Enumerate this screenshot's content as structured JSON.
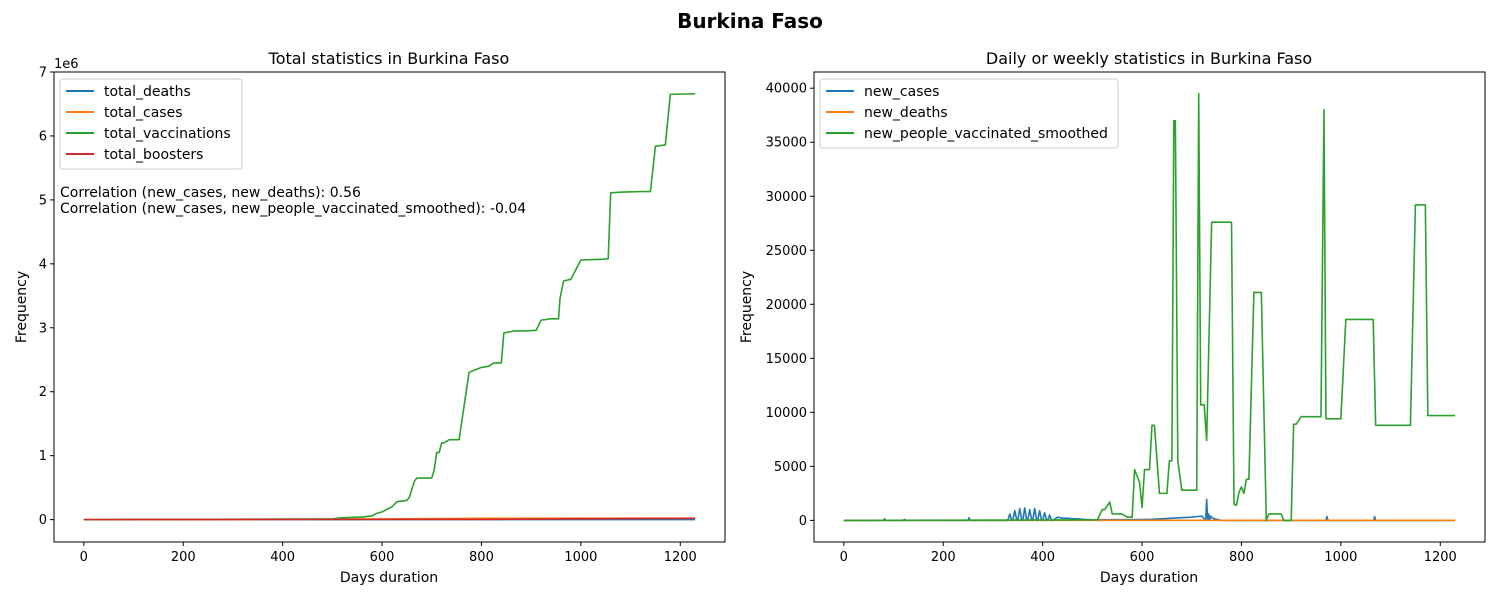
{
  "figure": {
    "suptitle": "Burkina Faso"
  },
  "chart_data": [
    {
      "type": "line",
      "title": "Total statistics in Burkina Faso",
      "xlabel": "Days duration",
      "ylabel": "Frequency",
      "y_offset_label": "1e6",
      "xlim": [
        -60,
        1290
      ],
      "ylim": [
        -350000,
        7000000
      ],
      "xticks": [
        0,
        200,
        400,
        600,
        800,
        1000,
        1200
      ],
      "yticks": [
        0,
        1000000,
        2000000,
        3000000,
        4000000,
        5000000,
        6000000,
        7000000
      ],
      "ytick_labels": [
        "0",
        "1",
        "2",
        "3",
        "4",
        "5",
        "6",
        "7"
      ],
      "legend_position": "upper-left",
      "annotations": [
        "Correlation (new_cases, new_deaths): 0.56",
        "Correlation (new_cases, new_people_vaccinated_smoothed): -0.04"
      ],
      "series": [
        {
          "name": "total_deaths",
          "color": "#1f77b4",
          "x": [
            0,
            1230
          ],
          "y": [
            0,
            400
          ]
        },
        {
          "name": "total_cases",
          "color": "#ff7f0e",
          "x": [
            0,
            300,
            400,
            600,
            800,
            1000,
            1230
          ],
          "y": [
            0,
            1000,
            4000,
            10000,
            20000,
            22000,
            22000
          ]
        },
        {
          "name": "total_vaccinations",
          "color": "#2ca02c",
          "x": [
            0,
            500,
            520,
            560,
            580,
            590,
            600,
            620,
            630,
            650,
            655,
            665,
            670,
            680,
            700,
            705,
            710,
            715,
            720,
            725,
            735,
            740,
            755,
            775,
            780,
            790,
            800,
            815,
            825,
            840,
            845,
            860,
            865,
            880,
            890,
            910,
            920,
            940,
            955,
            958,
            965,
            980,
            1000,
            1040,
            1055,
            1060,
            1080,
            1120,
            1140,
            1150,
            1160,
            1170,
            1180,
            1230
          ],
          "y": [
            0,
            10000,
            30000,
            40000,
            60000,
            100000,
            120000,
            200000,
            280000,
            300000,
            350000,
            600000,
            650000,
            650000,
            650000,
            780000,
            1050000,
            1050000,
            1200000,
            1200000,
            1250000,
            1250000,
            1250000,
            2300000,
            2320000,
            2350000,
            2380000,
            2400000,
            2450000,
            2450000,
            2920000,
            2940000,
            2950000,
            2950000,
            2950000,
            2960000,
            3120000,
            3140000,
            3140000,
            3450000,
            3730000,
            3760000,
            4060000,
            4070000,
            4080000,
            5110000,
            5120000,
            5130000,
            5130000,
            5840000,
            5850000,
            5860000,
            6650000,
            6660000
          ]
        },
        {
          "name": "total_boosters",
          "color": "#d62728",
          "x": [
            0,
            800,
            1230
          ],
          "y": [
            0,
            5000,
            20000
          ]
        }
      ]
    },
    {
      "type": "line",
      "title": "Daily or weekly statistics in Burkina Faso",
      "xlabel": "Days duration",
      "ylabel": "Frequency",
      "xlim": [
        -60,
        1290
      ],
      "ylim": [
        -2000,
        41500
      ],
      "xticks": [
        0,
        200,
        400,
        600,
        800,
        1000,
        1200
      ],
      "yticks": [
        0,
        5000,
        10000,
        15000,
        20000,
        25000,
        30000,
        35000,
        40000
      ],
      "legend_position": "upper-left",
      "series": [
        {
          "name": "new_cases",
          "color": "#1f77b4",
          "x": [
            0,
            80,
            82,
            84,
            120,
            122,
            124,
            250,
            252,
            254,
            330,
            334,
            338,
            340,
            344,
            348,
            350,
            354,
            358,
            360,
            364,
            368,
            370,
            374,
            378,
            380,
            384,
            388,
            390,
            394,
            398,
            400,
            404,
            408,
            410,
            414,
            418,
            420,
            430,
            440,
            450,
            460,
            470,
            480,
            500,
            600,
            620,
            640,
            660,
            680,
            700,
            710,
            720,
            728,
            730,
            732,
            734,
            736,
            738,
            742,
            750,
            760,
            970,
            972,
            974,
            1066,
            1068,
            1070,
            1230
          ],
          "y": [
            0,
            0,
            150,
            0,
            0,
            100,
            0,
            0,
            250,
            0,
            0,
            600,
            0,
            0,
            900,
            0,
            0,
            1100,
            0,
            0,
            1150,
            0,
            0,
            1000,
            0,
            0,
            1100,
            0,
            0,
            900,
            0,
            0,
            700,
            0,
            0,
            500,
            0,
            0,
            300,
            200,
            200,
            150,
            150,
            100,
            50,
            80,
            100,
            150,
            200,
            250,
            300,
            350,
            400,
            0,
            1950,
            0,
            600,
            0,
            400,
            200,
            100,
            0,
            0,
            350,
            0,
            0,
            350,
            0,
            0
          ]
        },
        {
          "name": "new_deaths",
          "color": "#ff7f0e",
          "x": [
            0,
            1230
          ],
          "y": [
            0,
            10
          ]
        },
        {
          "name": "new_people_vaccinated_smoothed",
          "color": "#2ca02c",
          "x": [
            0,
            510,
            520,
            525,
            535,
            540,
            560,
            570,
            580,
            585,
            595,
            600,
            605,
            615,
            620,
            625,
            635,
            650,
            655,
            660,
            664,
            667,
            672,
            680,
            700,
            710,
            714,
            718,
            725,
            730,
            740,
            750,
            760,
            780,
            785,
            790,
            795,
            800,
            805,
            810,
            815,
            825,
            830,
            840,
            850,
            855,
            860,
            865,
            880,
            885,
            900,
            905,
            910,
            920,
            930,
            940,
            960,
            966,
            970,
            980,
            1000,
            1010,
            1060,
            1065,
            1070,
            1100,
            1140,
            1150,
            1170,
            1175,
            1200,
            1230
          ],
          "y": [
            0,
            50,
            1000,
            1000,
            1700,
            600,
            600,
            300,
            300,
            4700,
            3500,
            1200,
            4700,
            4700,
            8800,
            8800,
            2500,
            2500,
            5500,
            5500,
            37000,
            37000,
            5500,
            2800,
            2800,
            2800,
            39500,
            10700,
            10700,
            7400,
            27600,
            27600,
            27600,
            27600,
            1500,
            1400,
            2600,
            3100,
            2500,
            3800,
            3800,
            21100,
            21100,
            21100,
            0,
            600,
            600,
            600,
            600,
            0,
            0,
            8900,
            8900,
            9600,
            9600,
            9600,
            9600,
            38000,
            9400,
            9400,
            9400,
            18600,
            18600,
            18600,
            8800,
            8800,
            8800,
            29200,
            29200,
            9700,
            9700,
            9700
          ]
        }
      ]
    }
  ]
}
